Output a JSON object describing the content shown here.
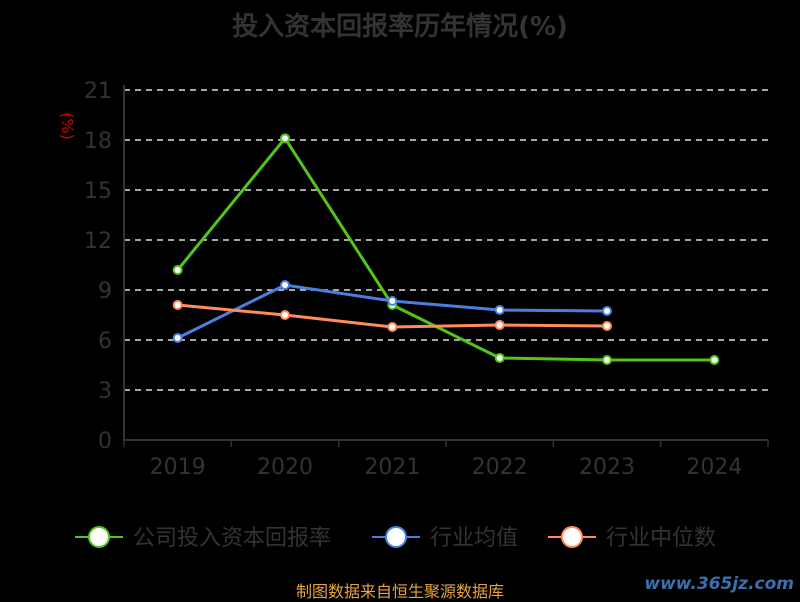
{
  "chart_data": {
    "type": "line",
    "title": "投入资本回报率历年情况(%)",
    "ylabel": "(%)",
    "xlabel": "",
    "ylim": [
      0,
      21
    ],
    "yticks": [
      0,
      3,
      6,
      9,
      12,
      15,
      18,
      21
    ],
    "grid": true,
    "categories": [
      "2019",
      "2020",
      "2021",
      "2022",
      "2023",
      "2024"
    ],
    "legend_position": "bottom",
    "series": [
      {
        "name": "公司投入资本回报率",
        "color": "#52c41a",
        "values": [
          10.2,
          18.1,
          8.1,
          4.92,
          4.8,
          4.8
        ]
      },
      {
        "name": "行业均值",
        "color": "#4a7fe0",
        "values": [
          6.12,
          9.3,
          8.34,
          7.8,
          7.74,
          null
        ]
      },
      {
        "name": "行业中位数",
        "color": "#ff8c5a",
        "values": [
          8.1,
          7.5,
          6.78,
          6.9,
          6.84,
          null
        ]
      }
    ]
  },
  "source": "制图数据来自恒生聚源数据库",
  "watermark": "www.365jz.com"
}
